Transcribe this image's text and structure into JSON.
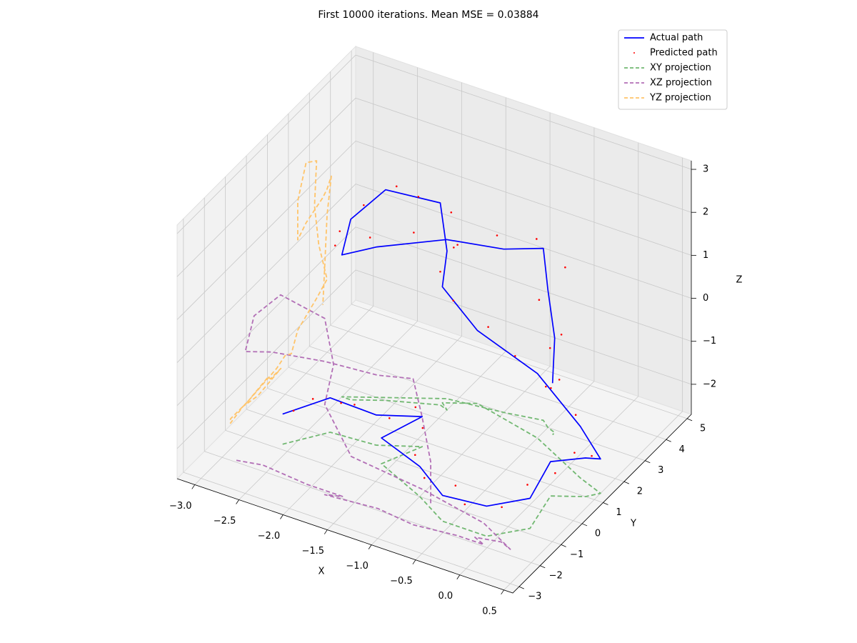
{
  "chart_data": {
    "type": "line3d",
    "title": "First 10000 iterations. Mean MSE = 0.03884",
    "xlabel": "X",
    "ylabel": "Y",
    "zlabel": "Z",
    "xlim": [
      -3.2,
      0.6
    ],
    "ylim": [
      -3.3,
      5.2
    ],
    "zlim": [
      -2.7,
      3.2
    ],
    "xticks": [
      {
        "value": -3,
        "label": "−3.0"
      },
      {
        "value": -2.5,
        "label": "−2.5"
      },
      {
        "value": -2,
        "label": "−2.0"
      },
      {
        "value": -1.5,
        "label": "−1.5"
      },
      {
        "value": -1,
        "label": "−1.0"
      },
      {
        "value": -0.5,
        "label": "−0.5"
      },
      {
        "value": 0,
        "label": "0.0"
      },
      0.5
    ],
    "yticks": [
      {
        "value": -3,
        "label": "−3"
      },
      {
        "value": -2,
        "label": "−2"
      },
      {
        "value": -1,
        "label": "−1"
      },
      0,
      1,
      2,
      3,
      4,
      5
    ],
    "zticks": [
      {
        "value": -2,
        "label": "−2"
      },
      {
        "value": -1,
        "label": "−1"
      },
      0,
      1,
      2,
      3
    ],
    "grid": true,
    "legend": "upper right",
    "series": [
      {
        "name": "Actual path",
        "color": "#0000ff",
        "style": "solid",
        "x": [
          -2.6,
          -2.3,
          -1.8,
          -1.4,
          -1.6,
          -1.0,
          -0.6,
          -0.1,
          0.2,
          0.1,
          0.4,
          0.5,
          0.2,
          -0.5,
          -1.3,
          -1.6,
          -1.5,
          -1.6,
          -2.1,
          -2.4,
          -2.5,
          -2.2,
          -1.6,
          -1.0,
          -0.6,
          -0.5,
          -0.4,
          -0.4
        ],
        "y": [
          -0.8,
          0.2,
          0.3,
          0.8,
          -0.3,
          -1.0,
          -1.6,
          -1.6,
          -0.8,
          0.6,
          1.0,
          1.3,
          1.6,
          2.5,
          3.0,
          2.6,
          2.4,
          2.5,
          2.0,
          1.6,
          1.6,
          2.0,
          2.8,
          3.0,
          3.2,
          3.0,
          2.9,
          2.8
        ],
        "z": [
          -2.0,
          -1.9,
          -2.0,
          -2.0,
          -2.1,
          -2.0,
          -2.1,
          -2.0,
          -2.0,
          -1.9,
          -1.8,
          -1.9,
          -1.5,
          -1.2,
          -1.0,
          0.0,
          1.0,
          2.0,
          2.2,
          1.5,
          0.6,
          0.8,
          1.0,
          1.1,
          1.3,
          0.5,
          -0.5,
          -1.5
        ]
      },
      {
        "name": "Predicted path",
        "color": "#ff0000",
        "style": "points",
        "x": [
          -2.5,
          -2.4,
          -2.2,
          -2.0,
          -1.7,
          -1.5,
          -1.3,
          -1.1,
          -0.9,
          -0.5,
          -0.3,
          0.0,
          0.1,
          0.2,
          0.3,
          0.4,
          0.1,
          -0.3,
          -0.8,
          -1.2,
          -1.5,
          -1.6,
          -1.4,
          -1.5,
          -1.8,
          -2.0,
          -2.3,
          -2.5,
          -2.6,
          -2.3,
          -1.9,
          -1.5,
          -1.1,
          -0.7,
          -0.4,
          -0.6,
          -0.3,
          -0.5,
          -0.3,
          -0.5
        ],
        "y": [
          -0.7,
          -0.2,
          0.3,
          0.1,
          0.5,
          0.9,
          0.4,
          -0.8,
          -1.2,
          -1.4,
          -1.8,
          -1.3,
          -0.5,
          0.4,
          0.9,
          1.3,
          1.8,
          2.3,
          2.7,
          3.1,
          2.7,
          2.5,
          2.3,
          2.6,
          2.3,
          2.1,
          1.8,
          1.5,
          1.7,
          2.1,
          2.5,
          2.9,
          3.1,
          3.3,
          3.4,
          3.0,
          2.8,
          3.1,
          2.7,
          2.9
        ],
        "z": [
          -1.9,
          -1.8,
          -2.0,
          -1.8,
          -2.1,
          -1.9,
          -2.0,
          -1.9,
          -2.1,
          -1.9,
          -2.0,
          -2.1,
          -1.9,
          -2.0,
          -1.7,
          -1.9,
          -1.4,
          -1.3,
          -1.1,
          -0.9,
          -0.3,
          0.4,
          1.2,
          1.8,
          2.1,
          2.3,
          1.8,
          1.2,
          0.7,
          0.9,
          1.1,
          0.9,
          1.3,
          1.4,
          0.9,
          0.2,
          -0.3,
          -0.9,
          -1.3,
          -1.7
        ]
      },
      {
        "name": "XY projection",
        "color": "#72b872",
        "style": "dashed",
        "x": [
          -2.6,
          -2.3,
          -1.8,
          -1.4,
          -1.6,
          -1.0,
          -0.6,
          -0.1,
          0.2,
          0.1,
          0.4,
          0.5,
          0.2,
          -0.5,
          -1.3,
          -1.6,
          -1.5,
          -1.6,
          -2.1,
          -2.4,
          -2.5,
          -2.2,
          -1.6,
          -1.0,
          -0.6,
          -0.5,
          -0.4,
          -0.4
        ],
        "y": [
          -0.8,
          0.2,
          0.3,
          0.8,
          -0.3,
          -1.0,
          -1.6,
          -1.6,
          -0.8,
          0.6,
          1.0,
          1.3,
          1.6,
          2.5,
          3.0,
          2.6,
          2.4,
          2.5,
          2.0,
          1.6,
          1.6,
          2.0,
          2.8,
          3.0,
          3.2,
          3.0,
          2.9,
          2.8
        ],
        "z": [
          -2.7,
          -2.7,
          -2.7,
          -2.7,
          -2.7,
          -2.7,
          -2.7,
          -2.7,
          -2.7,
          -2.7,
          -2.7,
          -2.7,
          -2.7,
          -2.7,
          -2.7,
          -2.7,
          -2.7,
          -2.7,
          -2.7,
          -2.7,
          -2.7,
          -2.7,
          -2.7,
          -2.7,
          -2.7,
          -2.7,
          -2.7,
          -2.7
        ]
      },
      {
        "name": "XZ projection",
        "color": "#b26fb6",
        "style": "dashed",
        "x": [
          -2.6,
          -2.3,
          -1.8,
          -1.4,
          -1.6,
          -1.0,
          -0.6,
          -0.1,
          0.2,
          0.1,
          0.4,
          0.5,
          0.2,
          -0.5,
          -1.3,
          -1.6,
          -1.5,
          -1.6,
          -2.1,
          -2.4,
          -2.5,
          -2.2,
          -1.6,
          -1.0,
          -0.6,
          -0.5,
          -0.4,
          -0.4
        ],
        "y": [
          -3.0,
          -3.0,
          -3.0,
          -3.0,
          -3.0,
          -3.0,
          -3.0,
          -3.0,
          -3.0,
          -3.0,
          -3.0,
          -3.0,
          -3.0,
          -3.0,
          -3.0,
          -3.0,
          -3.0,
          -3.0,
          -3.0,
          -3.0,
          -3.0,
          -3.0,
          -3.0,
          -3.0,
          -3.0,
          -3.0,
          -3.0,
          -3.0
        ],
        "z": [
          -2.0,
          -1.9,
          -2.0,
          -2.0,
          -2.1,
          -2.0,
          -2.1,
          -2.0,
          -2.0,
          -1.9,
          -1.8,
          -1.9,
          -1.5,
          -1.2,
          -1.0,
          0.0,
          1.0,
          2.0,
          2.2,
          1.5,
          0.6,
          0.8,
          1.0,
          1.1,
          1.3,
          0.5,
          -0.5,
          -1.5
        ]
      },
      {
        "name": "YZ projection",
        "color": "#ffc46a",
        "style": "dashed",
        "x": [
          -3.0,
          -3.0,
          -3.0,
          -3.0,
          -3.0,
          -3.0,
          -3.0,
          -3.0,
          -3.0,
          -3.0,
          -3.0,
          -3.0,
          -3.0,
          -3.0,
          -3.0,
          -3.0,
          -3.0,
          -3.0,
          -3.0,
          -3.0,
          -3.0,
          -3.0,
          -3.0,
          -3.0,
          -3.0,
          -3.0,
          -3.0,
          -3.0
        ],
        "y": [
          -0.8,
          0.2,
          0.3,
          0.8,
          -0.3,
          -1.0,
          -1.6,
          -1.6,
          -0.8,
          0.6,
          1.0,
          1.3,
          1.6,
          2.5,
          3.0,
          2.6,
          2.4,
          2.5,
          2.0,
          1.6,
          1.6,
          2.0,
          2.8,
          3.0,
          3.2,
          3.0,
          2.9,
          2.8
        ],
        "z": [
          -2.0,
          -1.9,
          -2.0,
          -2.0,
          -2.1,
          -2.0,
          -2.1,
          -2.0,
          -2.0,
          -1.9,
          -1.8,
          -1.9,
          -1.5,
          -1.2,
          -1.0,
          0.0,
          1.0,
          2.0,
          2.2,
          1.5,
          0.6,
          0.8,
          1.0,
          1.1,
          1.3,
          0.5,
          -0.5,
          -1.5
        ]
      }
    ]
  }
}
